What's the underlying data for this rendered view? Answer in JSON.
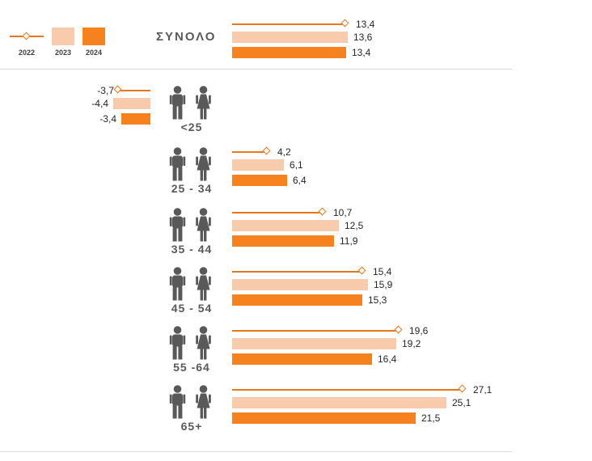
{
  "legend": {
    "items": [
      {
        "label": "2022",
        "swatch": "line-diamond-marker",
        "color": "#E8761B"
      },
      {
        "label": "2023",
        "swatch": "square",
        "color": "#F8CBAD"
      },
      {
        "label": "2024",
        "swatch": "square",
        "color": "#F5821F"
      }
    ],
    "position": "top-left"
  },
  "colors": {
    "line2022": "#E8761B",
    "bar2023": "#F8CBAD",
    "bar2024": "#F5821F",
    "icon": "#595959",
    "category_label": "#595959",
    "value_label": "#262626",
    "separator": "#D9D9D9"
  },
  "chart_data": {
    "type": "bar",
    "orientation": "horizontal",
    "title": "",
    "xlabel": "",
    "ylabel": "",
    "xlim": [
      -5,
      28
    ],
    "grid": false,
    "data_labels": true,
    "legend_position": "top-left",
    "decimal_separator": ",",
    "categories": [
      "ΣΥΝΟΛΟ",
      "<25",
      "25 - 34",
      "35 - 44",
      "45 - 54",
      "55 -64",
      "65+"
    ],
    "category_icons": [
      [],
      [
        "man-icon",
        "woman-icon"
      ],
      [
        "man-icon",
        "woman-icon"
      ],
      [
        "man-icon",
        "woman-icon"
      ],
      [
        "man-icon",
        "woman-icon"
      ],
      [
        "man-icon",
        "woman-icon"
      ],
      [
        "man-icon",
        "woman-icon"
      ]
    ],
    "series": [
      {
        "name": "2022",
        "style": "line-marker",
        "values": [
          13.4,
          -3.7,
          4.2,
          10.7,
          15.4,
          19.6,
          27.1
        ]
      },
      {
        "name": "2023",
        "style": "bar",
        "values": [
          13.6,
          -4.4,
          6.1,
          12.5,
          15.9,
          19.2,
          25.1
        ]
      },
      {
        "name": "2024",
        "style": "bar",
        "values": [
          13.4,
          -3.4,
          6.4,
          11.9,
          15.3,
          16.4,
          21.5
        ]
      }
    ],
    "value_labels": {
      "2022": [
        "13,4",
        "-3,7",
        "4,2",
        "10,7",
        "15,4",
        "19,6",
        "27,1"
      ],
      "2023": [
        "13,6",
        "-4,4",
        "6,1",
        "12,5",
        "15,9",
        "19,2",
        "25,1"
      ],
      "2024": [
        "13,4",
        "-3,4",
        "6,4",
        "11,9",
        "15,3",
        "16,4",
        "21,5"
      ]
    }
  }
}
